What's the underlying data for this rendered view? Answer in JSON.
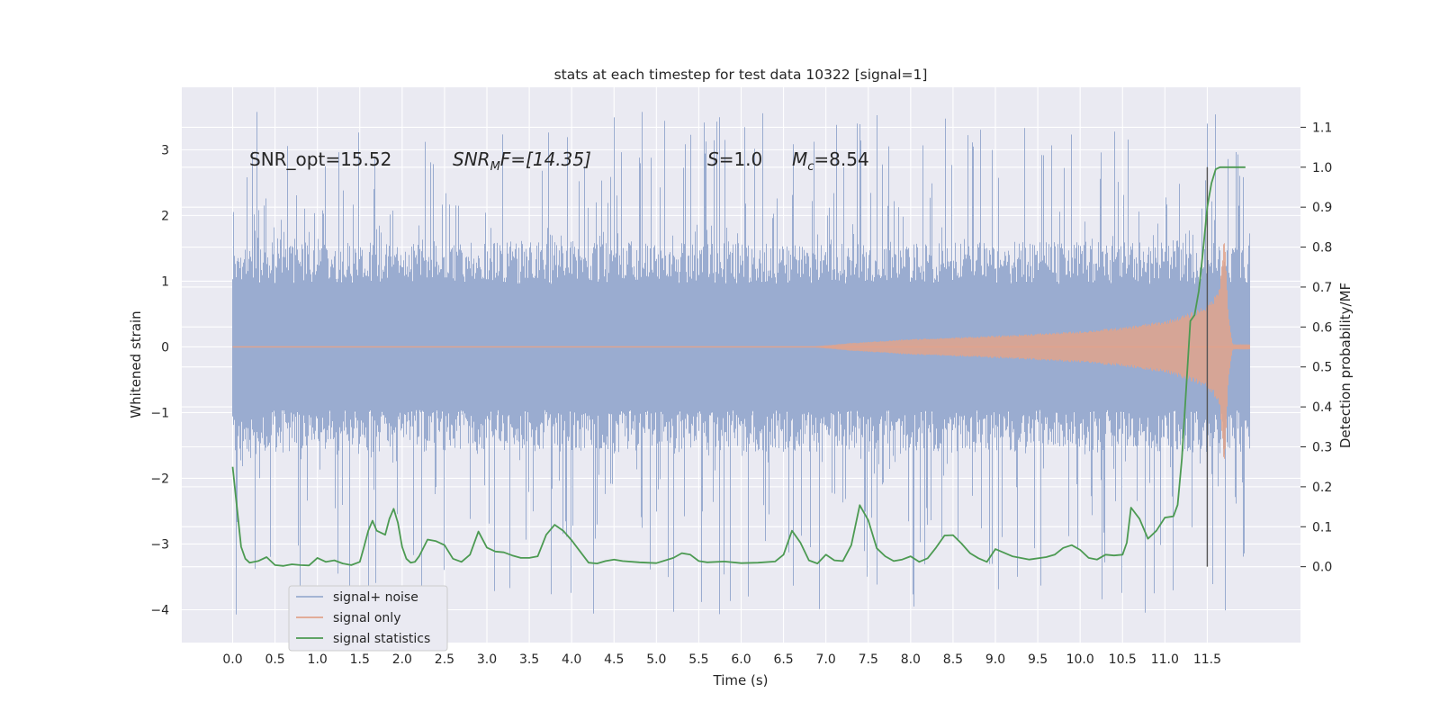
{
  "chart_data": {
    "type": "line",
    "title": "stats at each timestep for test data 10322 [signal=1]",
    "xlabel": "Time (s)",
    "ylabel": "Whitened strain",
    "ylabel_right": "Detection probability/MF",
    "xlim": [
      -0.6,
      12.6
    ],
    "ylim_left": [
      -4.5,
      3.95
    ],
    "ylim_right": [
      -0.19,
      1.2
    ],
    "x_ticks": [
      0.0,
      0.5,
      1.0,
      1.5,
      2.0,
      2.5,
      3.0,
      3.5,
      4.0,
      4.5,
      5.0,
      5.5,
      6.0,
      6.5,
      7.0,
      7.5,
      8.0,
      8.5,
      9.0,
      9.5,
      10.0,
      10.5,
      11.0,
      11.5
    ],
    "x_tick_labels": [
      "0.0",
      "0.5",
      "1.0",
      "1.5",
      "2.0",
      "2.5",
      "3.0",
      "3.5",
      "4.0",
      "4.5",
      "5.0",
      "5.5",
      "6.0",
      "6.5",
      "7.0",
      "7.5",
      "8.0",
      "8.5",
      "9.0",
      "9.5",
      "10.0",
      "10.5",
      "11.0",
      "11.5"
    ],
    "y_left_ticks": [
      -4,
      -3,
      -2,
      -1,
      0,
      1,
      2,
      3
    ],
    "y_left_tick_labels": [
      "−4",
      "−3",
      "−2",
      "−1",
      "0",
      "1",
      "2",
      "3"
    ],
    "y_right_ticks": [
      0.0,
      0.1,
      0.2,
      0.3,
      0.4,
      0.5,
      0.6,
      0.7,
      0.8,
      0.9,
      1.0,
      1.1
    ],
    "y_right_tick_labels": [
      "0.0",
      "0.1",
      "0.2",
      "0.3",
      "0.4",
      "0.5",
      "0.6",
      "0.7",
      "0.8",
      "0.9",
      "1.0",
      "1.1"
    ],
    "grid": true,
    "legend_position": "lower-left",
    "annotations": {
      "snr_opt": "SNR_opt=15.52",
      "snr_mf_italic": "SNR",
      "snr_mf_sub": "M",
      "snr_mf_tail": "F=[14.35]",
      "s_italic": "S",
      "s_tail": "=1.0",
      "mc_italic": "M",
      "mc_sub": "c",
      "mc_tail": "=8.54"
    },
    "series": [
      {
        "name": "signal+ noise",
        "axis": "left",
        "color": "#9aacd0",
        "x_range": [
          0.0,
          12.0
        ],
        "envelope": {
          "typical_upper": 1.6,
          "typical_lower": -1.6,
          "peak_upper": 3.6,
          "peak_lower": -4.1
        }
      },
      {
        "name": "signal only",
        "axis": "left",
        "color": "#e1a38c",
        "x_range": [
          0.0,
          12.0
        ],
        "envelope_t": [
          0.0,
          6.8,
          7.3,
          8.0,
          9.0,
          10.0,
          10.5,
          11.0,
          11.3,
          11.5,
          11.6,
          11.65,
          11.7,
          11.75,
          11.8,
          12.0
        ],
        "envelope_amp": [
          0.0,
          0.0,
          0.06,
          0.12,
          0.17,
          0.24,
          0.3,
          0.4,
          0.52,
          0.65,
          0.8,
          1.0,
          1.85,
          0.5,
          0.04,
          0.04
        ],
        "envelope_amp_lower": [
          0.0,
          0.0,
          0.06,
          0.12,
          0.17,
          0.24,
          0.3,
          0.4,
          0.52,
          0.65,
          0.8,
          1.0,
          2.0,
          0.5,
          0.04,
          0.04
        ]
      },
      {
        "name": "signal statistics",
        "axis": "right",
        "color": "#4c9a52",
        "x": [
          0.0,
          0.05,
          0.1,
          0.15,
          0.2,
          0.3,
          0.4,
          0.5,
          0.6,
          0.7,
          0.8,
          0.9,
          1.0,
          1.1,
          1.2,
          1.3,
          1.4,
          1.5,
          1.55,
          1.6,
          1.65,
          1.7,
          1.8,
          1.85,
          1.9,
          1.95,
          2.0,
          2.05,
          2.1,
          2.15,
          2.2,
          2.3,
          2.4,
          2.5,
          2.6,
          2.7,
          2.8,
          2.9,
          3.0,
          3.1,
          3.2,
          3.3,
          3.4,
          3.5,
          3.6,
          3.7,
          3.8,
          3.9,
          4.0,
          4.1,
          4.2,
          4.3,
          4.4,
          4.5,
          4.6,
          4.8,
          5.0,
          5.2,
          5.3,
          5.4,
          5.5,
          5.6,
          5.8,
          6.0,
          6.2,
          6.4,
          6.5,
          6.6,
          6.7,
          6.8,
          6.9,
          7.0,
          7.1,
          7.2,
          7.3,
          7.4,
          7.5,
          7.6,
          7.7,
          7.8,
          7.9,
          8.0,
          8.1,
          8.2,
          8.3,
          8.4,
          8.5,
          8.6,
          8.7,
          8.8,
          8.9,
          9.0,
          9.2,
          9.4,
          9.6,
          9.7,
          9.8,
          9.9,
          10.0,
          10.1,
          10.2,
          10.3,
          10.4,
          10.5,
          10.55,
          10.6,
          10.7,
          10.8,
          10.9,
          11.0,
          11.1,
          11.15,
          11.2,
          11.3,
          11.35,
          11.4,
          11.45,
          11.5,
          11.55,
          11.6,
          11.65,
          11.7,
          11.8,
          11.9,
          11.95
        ],
        "y": [
          0.25,
          0.15,
          0.05,
          0.02,
          0.01,
          0.014,
          0.024,
          0.004,
          0.002,
          0.006,
          0.004,
          0.003,
          0.022,
          0.012,
          0.016,
          0.008,
          0.004,
          0.012,
          0.05,
          0.09,
          0.115,
          0.09,
          0.08,
          0.12,
          0.145,
          0.11,
          0.05,
          0.02,
          0.01,
          0.012,
          0.026,
          0.068,
          0.064,
          0.054,
          0.02,
          0.012,
          0.03,
          0.088,
          0.048,
          0.038,
          0.036,
          0.028,
          0.022,
          0.022,
          0.026,
          0.08,
          0.105,
          0.09,
          0.066,
          0.038,
          0.01,
          0.008,
          0.014,
          0.018,
          0.014,
          0.011,
          0.009,
          0.022,
          0.034,
          0.03,
          0.014,
          0.011,
          0.013,
          0.009,
          0.01,
          0.013,
          0.03,
          0.09,
          0.06,
          0.016,
          0.008,
          0.03,
          0.016,
          0.014,
          0.054,
          0.154,
          0.116,
          0.046,
          0.026,
          0.014,
          0.018,
          0.026,
          0.012,
          0.021,
          0.048,
          0.078,
          0.079,
          0.058,
          0.034,
          0.021,
          0.012,
          0.044,
          0.026,
          0.018,
          0.024,
          0.03,
          0.047,
          0.054,
          0.042,
          0.022,
          0.018,
          0.03,
          0.028,
          0.03,
          0.06,
          0.148,
          0.12,
          0.07,
          0.09,
          0.123,
          0.126,
          0.155,
          0.27,
          0.615,
          0.63,
          0.69,
          0.79,
          0.9,
          0.96,
          0.995,
          1.0,
          1.0,
          1.0,
          1.0,
          1.0
        ]
      }
    ],
    "vertical_marker": {
      "x": 11.5,
      "y_range_right": [
        0.0,
        1.0
      ],
      "color": "#555555"
    }
  }
}
